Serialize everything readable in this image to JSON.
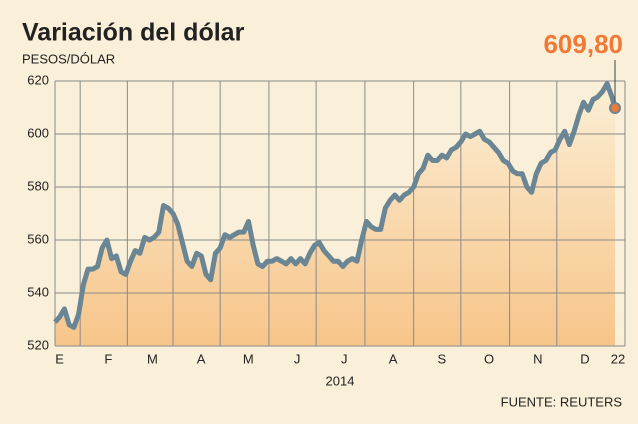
{
  "chart_data": {
    "type": "area-line",
    "title": "Variación del dólar",
    "subtitle": "PESOS/DÓLAR",
    "xlabel": "2014",
    "source": "FUENTE: REUTERS",
    "end_label": "609,80",
    "xlim": [
      0,
      356
    ],
    "xticks": [
      {
        "value": 1,
        "label": "E"
      },
      {
        "value": 32,
        "label": "F"
      },
      {
        "value": 60,
        "label": "M"
      },
      {
        "value": 91,
        "label": "A"
      },
      {
        "value": 121,
        "label": "M"
      },
      {
        "value": 152,
        "label": "J"
      },
      {
        "value": 182,
        "label": "J"
      },
      {
        "value": 213,
        "label": "A"
      },
      {
        "value": 244,
        "label": "S"
      },
      {
        "value": 274,
        "label": "O"
      },
      {
        "value": 305,
        "label": "N"
      },
      {
        "value": 335,
        "label": "D"
      },
      {
        "value": 356,
        "label": "22"
      }
    ],
    "xgrid": [
      16,
      46,
      75,
      105,
      136,
      166,
      197,
      228,
      258,
      289,
      319
    ],
    "ylim": [
      520,
      620
    ],
    "yticks": [
      520,
      540,
      560,
      580,
      600,
      620
    ],
    "grid": true,
    "x": [
      0,
      3,
      6,
      9,
      12,
      15,
      18,
      21,
      24,
      27,
      30,
      33,
      36,
      39,
      42,
      45,
      48,
      51,
      54,
      57,
      60,
      63,
      66,
      69,
      72,
      75,
      78,
      81,
      84,
      87,
      90,
      93,
      96,
      99,
      102,
      105,
      108,
      111,
      114,
      117,
      120,
      123,
      126,
      129,
      132,
      135,
      138,
      141,
      144,
      147,
      150,
      153,
      156,
      159,
      162,
      165,
      168,
      171,
      174,
      177,
      180,
      183,
      186,
      189,
      192,
      195,
      198,
      201,
      204,
      207,
      210,
      213,
      216,
      219,
      222,
      225,
      228,
      231,
      234,
      237,
      240,
      243,
      246,
      249,
      252,
      255,
      258,
      261,
      264,
      267,
      270,
      273,
      276,
      279,
      282,
      285,
      288,
      291,
      294,
      297,
      300,
      303,
      306,
      309,
      312,
      315,
      318,
      321,
      324,
      327,
      330,
      333,
      336,
      339,
      342,
      345,
      348,
      351,
      354,
      356
    ],
    "series": [
      {
        "color": "#6a8593",
        "values": [
          529,
          531,
          534,
          528,
          527,
          532,
          543,
          549,
          549,
          550,
          557,
          560,
          553,
          554,
          548,
          547,
          552,
          556,
          555,
          561,
          560,
          561,
          563,
          573,
          572,
          570,
          566,
          559,
          552,
          550,
          555,
          554,
          547,
          545,
          555,
          557,
          562,
          561,
          562,
          563,
          563,
          567,
          558,
          551,
          550,
          552,
          552,
          553,
          552,
          551,
          553,
          551,
          553,
          551,
          555,
          558,
          559,
          556,
          554,
          552,
          552,
          550,
          552,
          553,
          552,
          560,
          567,
          565,
          564,
          564,
          572,
          575,
          577,
          575,
          577,
          578,
          580,
          585,
          587,
          592,
          590,
          590,
          592,
          591,
          594,
          595,
          597,
          600,
          599,
          600,
          601,
          598,
          597,
          595,
          593,
          590,
          589,
          586,
          585,
          585,
          580,
          578,
          585,
          589,
          590,
          593,
          594,
          598,
          601,
          596,
          601,
          607,
          612,
          609,
          613,
          614,
          616,
          619,
          614,
          609.8
        ]
      }
    ],
    "end_color": "#ef7a35"
  }
}
